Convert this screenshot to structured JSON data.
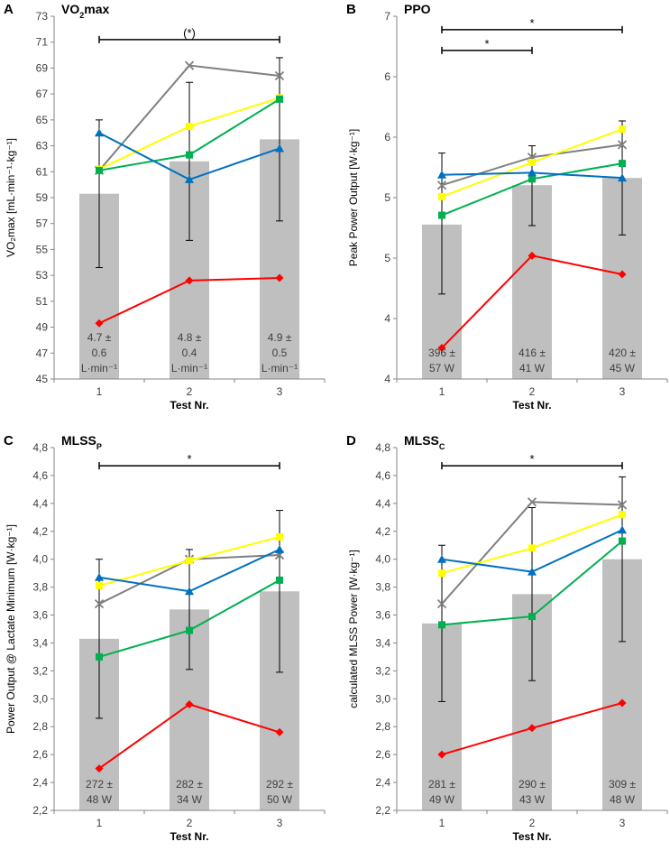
{
  "chart_data": [
    {
      "type": "bar",
      "panel_letter": "A",
      "title": "VO",
      "title_sub": "2",
      "title_rest": "max",
      "ylabel": "VO₂max [mL·min⁻¹·kg⁻¹]",
      "xlabel": "Test Nr.",
      "categories": [
        "1",
        "2",
        "3"
      ],
      "ylim": [
        45,
        73
      ],
      "yticks": [
        "45",
        "47",
        "49",
        "51",
        "53",
        "55",
        "57",
        "59",
        "61",
        "63",
        "65",
        "67",
        "69",
        "71",
        "73"
      ],
      "bars": [
        59.3,
        61.8,
        63.5
      ],
      "error_low": [
        53.6,
        55.7,
        57.2
      ],
      "error_high": [
        65.0,
        67.9,
        69.8
      ],
      "bar_labels": [
        [
          "4.7 ±",
          "0.6",
          "L·min⁻¹"
        ],
        [
          "4.8 ±",
          "0.4",
          "L·min⁻¹"
        ],
        [
          "4.9 ±",
          "0.5",
          "L·min⁻¹"
        ]
      ],
      "series": [
        {
          "name": "grey",
          "color": "#808080",
          "marker": "x",
          "values": [
            61.1,
            69.2,
            68.4
          ]
        },
        {
          "name": "yellow",
          "color": "#ffff00",
          "marker": "square",
          "values": [
            61.2,
            64.5,
            66.7
          ]
        },
        {
          "name": "green",
          "color": "#00b050",
          "marker": "square",
          "values": [
            61.1,
            62.3,
            66.6
          ]
        },
        {
          "name": "blue",
          "color": "#0070c0",
          "marker": "triangle",
          "values": [
            64.0,
            60.4,
            62.8
          ]
        },
        {
          "name": "red",
          "color": "#ff0000",
          "marker": "diamond",
          "values": [
            49.3,
            52.6,
            52.8
          ]
        }
      ],
      "brackets": [
        {
          "from": 0,
          "to": 2,
          "level": 71.2,
          "label": "(*)"
        }
      ]
    },
    {
      "type": "bar",
      "panel_letter": "B",
      "title": "PPO",
      "title_sub": "",
      "title_rest": "",
      "ylabel": "Peak Power Output [W·kg⁻¹]",
      "xlabel": "Test Nr.",
      "categories": [
        "1",
        "2",
        "3"
      ],
      "ylim": [
        3.5,
        7
      ],
      "yticks": [
        "4",
        "4",
        "5",
        "5",
        "6",
        "6",
        "7"
      ],
      "bars": [
        4.99,
        5.37,
        5.44
      ],
      "error_low": [
        4.32,
        4.98,
        4.89
      ],
      "error_high": [
        5.68,
        5.75,
        5.99
      ],
      "bar_labels": [
        [
          "396 ±",
          "57 W"
        ],
        [
          "416 ±",
          "41 W"
        ],
        [
          "420 ±",
          "45 W"
        ]
      ],
      "series": [
        {
          "name": "grey",
          "color": "#808080",
          "marker": "x",
          "values": [
            5.37,
            5.64,
            5.76
          ]
        },
        {
          "name": "yellow",
          "color": "#ffff00",
          "marker": "square",
          "values": [
            5.26,
            5.59,
            5.91
          ]
        },
        {
          "name": "green",
          "color": "#00b050",
          "marker": "square",
          "values": [
            5.08,
            5.43,
            5.58
          ]
        },
        {
          "name": "blue",
          "color": "#0070c0",
          "marker": "triangle",
          "values": [
            5.47,
            5.49,
            5.44
          ]
        },
        {
          "name": "red",
          "color": "#ff0000",
          "marker": "diamond",
          "values": [
            3.8,
            4.69,
            4.51
          ]
        }
      ],
      "brackets": [
        {
          "from": 0,
          "to": 2,
          "level": 6.87,
          "label": "*"
        },
        {
          "from": 0,
          "to": 1,
          "level": 6.67,
          "label": "*"
        }
      ]
    },
    {
      "type": "bar",
      "panel_letter": "C",
      "title": "MLSS",
      "title_sub": "P",
      "title_rest": "",
      "ylabel": "Power Output @ Lactate Minimum [W·kg⁻¹]",
      "xlabel": "Test Nr.",
      "categories": [
        "1",
        "2",
        "3"
      ],
      "ylim": [
        2.2,
        4.8
      ],
      "yticks": [
        "2,2",
        "2,4",
        "2,6",
        "2,8",
        "3,0",
        "3,2",
        "3,4",
        "3,6",
        "3,8",
        "4,0",
        "4,2",
        "4,4",
        "4,6",
        "4,8"
      ],
      "bars": [
        3.43,
        3.64,
        3.77
      ],
      "error_low": [
        2.86,
        3.21,
        3.19
      ],
      "error_high": [
        4.0,
        4.07,
        4.35
      ],
      "bar_labels": [
        [
          "272 ±",
          "48 W"
        ],
        [
          "282 ±",
          "34 W"
        ],
        [
          "292 ±",
          "50 W"
        ]
      ],
      "series": [
        {
          "name": "grey",
          "color": "#808080",
          "marker": "x",
          "values": [
            3.68,
            4.0,
            4.03
          ]
        },
        {
          "name": "yellow",
          "color": "#ffff00",
          "marker": "square",
          "values": [
            3.81,
            3.99,
            4.16
          ]
        },
        {
          "name": "green",
          "color": "#00b050",
          "marker": "square",
          "values": [
            3.3,
            3.49,
            3.85
          ]
        },
        {
          "name": "blue",
          "color": "#0070c0",
          "marker": "triangle",
          "values": [
            3.87,
            3.77,
            4.07
          ]
        },
        {
          "name": "red",
          "color": "#ff0000",
          "marker": "diamond",
          "values": [
            2.5,
            2.96,
            2.76
          ]
        }
      ],
      "brackets": [
        {
          "from": 0,
          "to": 2,
          "level": 4.67,
          "label": "*"
        }
      ]
    },
    {
      "type": "bar",
      "panel_letter": "D",
      "title": "MLSS",
      "title_sub": "C",
      "title_rest": "",
      "ylabel": "calculated MLSS Power [W·kg⁻¹]",
      "xlabel": "Test Nr.",
      "categories": [
        "1",
        "2",
        "3"
      ],
      "ylim": [
        2.2,
        4.8
      ],
      "yticks": [
        "2,2",
        "2,4",
        "2,6",
        "2,8",
        "3,0",
        "3,2",
        "3,4",
        "3,6",
        "3,8",
        "4,0",
        "4,2",
        "4,4",
        "4,6",
        "4,8"
      ],
      "bars": [
        3.54,
        3.75,
        4.0
      ],
      "error_low": [
        2.98,
        3.13,
        3.41
      ],
      "error_high": [
        4.1,
        4.37,
        4.59
      ],
      "bar_labels": [
        [
          "281 ±",
          "49 W"
        ],
        [
          "290 ±",
          "43 W"
        ],
        [
          "309 ±",
          "48 W"
        ]
      ],
      "series": [
        {
          "name": "grey",
          "color": "#808080",
          "marker": "x",
          "values": [
            3.68,
            4.41,
            4.39
          ]
        },
        {
          "name": "yellow",
          "color": "#ffff00",
          "marker": "square",
          "values": [
            3.9,
            4.08,
            4.32
          ]
        },
        {
          "name": "green",
          "color": "#00b050",
          "marker": "square",
          "values": [
            3.53,
            3.59,
            4.13
          ]
        },
        {
          "name": "blue",
          "color": "#0070c0",
          "marker": "triangle",
          "values": [
            4.0,
            3.91,
            4.21
          ]
        },
        {
          "name": "red",
          "color": "#ff0000",
          "marker": "diamond",
          "values": [
            2.6,
            2.79,
            2.97
          ]
        }
      ],
      "brackets": [
        {
          "from": 0,
          "to": 2,
          "level": 4.67,
          "label": "*"
        }
      ]
    }
  ]
}
